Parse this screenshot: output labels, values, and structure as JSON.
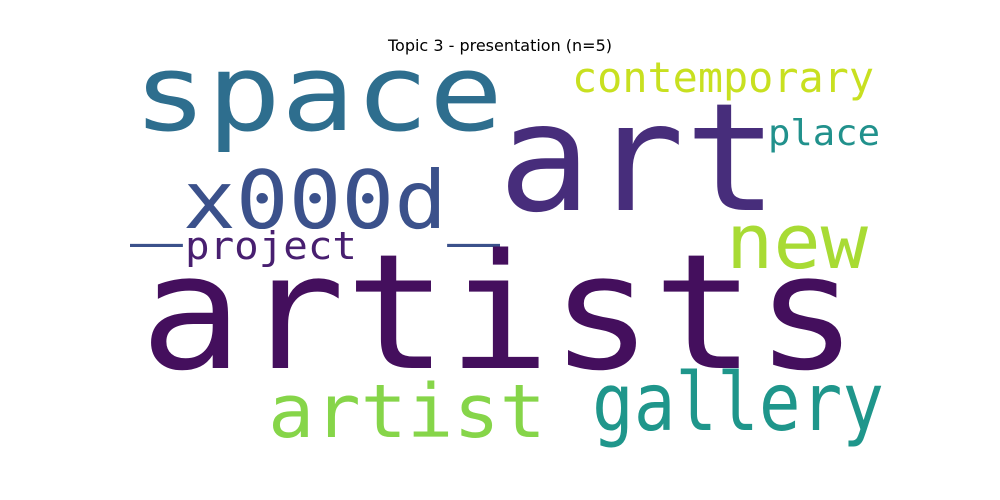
{
  "title": "Topic 3 - presentation (n=5)",
  "words": [
    {
      "id": "space",
      "text": "space",
      "color": "#2e6e8e"
    },
    {
      "id": "art",
      "text": "art",
      "color": "#472d7b"
    },
    {
      "id": "x000d",
      "text": "_x000d_",
      "color": "#3b518b"
    },
    {
      "id": "contemporary",
      "text": "contemporary",
      "color": "#c8e020"
    },
    {
      "id": "place",
      "text": "place",
      "color": "#21918c"
    },
    {
      "id": "new",
      "text": "new",
      "color": "#a8db34"
    },
    {
      "id": "project",
      "text": "project",
      "color": "#481f70"
    },
    {
      "id": "artists",
      "text": "artists",
      "color": "#440f5d"
    },
    {
      "id": "artist",
      "text": "artist",
      "color": "#86d549"
    },
    {
      "id": "gallery",
      "text": "gallery",
      "color": "#1f968b"
    }
  ]
}
